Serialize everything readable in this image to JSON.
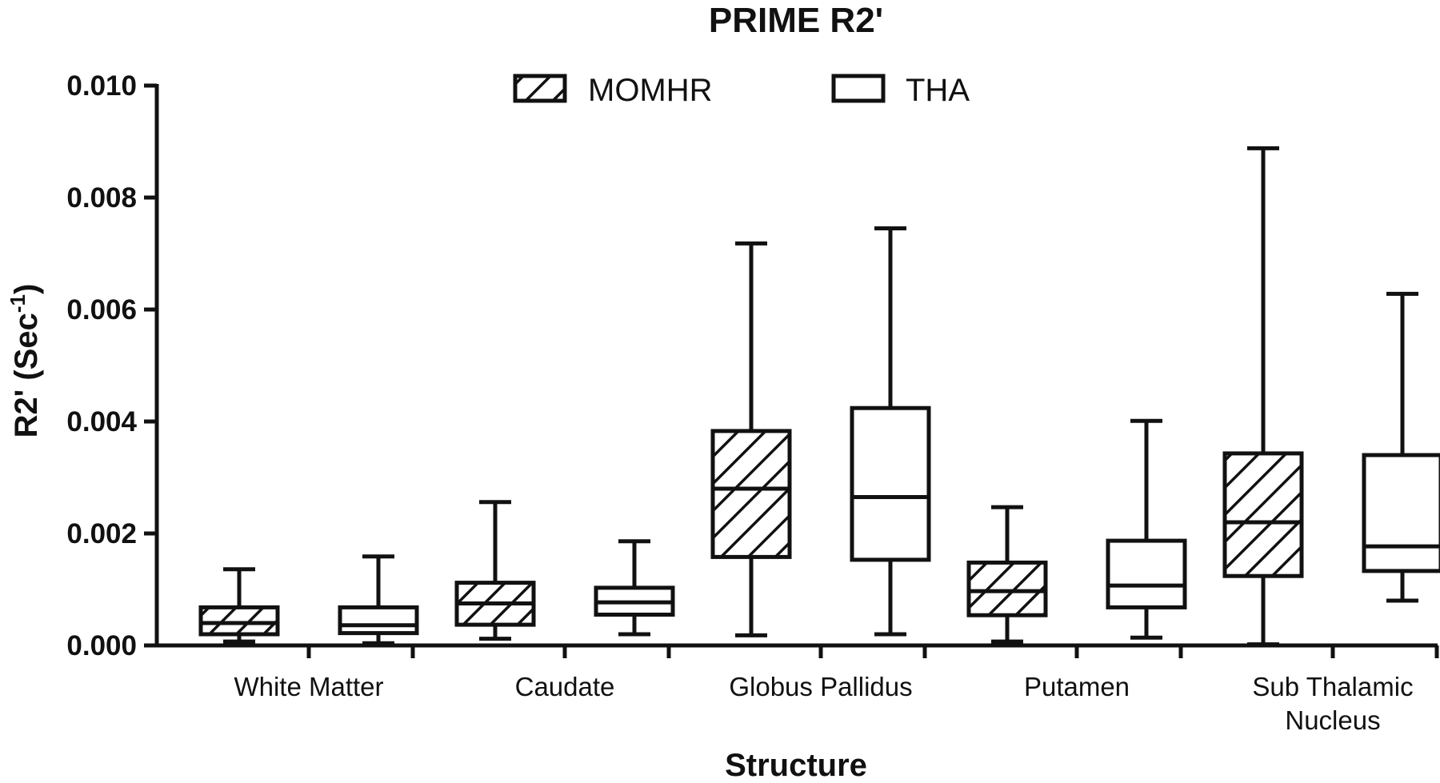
{
  "chart_data": {
    "type": "box",
    "title": "PRIME R2'",
    "xlabel": "Structure",
    "ylabel": "R2' (Sec",
    "ylabel_superscript": "-1",
    "ylabel_close": ")",
    "ylim": [
      0,
      0.01
    ],
    "yticks": [
      "0.000",
      "0.002",
      "0.004",
      "0.006",
      "0.008",
      "0.010"
    ],
    "ytick_values": [
      0,
      0.002,
      0.004,
      0.006,
      0.008,
      0.01
    ],
    "grid": false,
    "legend_position": "top-center",
    "categories": [
      [
        "White Matter"
      ],
      [
        "Caudate"
      ],
      [
        "Globus Pallidus"
      ],
      [
        "Putamen"
      ],
      [
        "Sub Thalamic",
        "Nucleus"
      ]
    ],
    "series": [
      {
        "name": "MOMHR",
        "fill": "hatched",
        "boxes": [
          {
            "min": 7e-05,
            "q1": 0.0002,
            "median": 0.0004,
            "q3": 0.00068,
            "max": 0.00136
          },
          {
            "min": 0.00012,
            "q1": 0.00037,
            "median": 0.00075,
            "q3": 0.00112,
            "max": 0.00256
          },
          {
            "min": 0.00018,
            "q1": 0.00158,
            "median": 0.0028,
            "q3": 0.00383,
            "max": 0.00718
          },
          {
            "min": 7e-05,
            "q1": 0.00054,
            "median": 0.00097,
            "q3": 0.00148,
            "max": 0.00247
          },
          {
            "min": 2e-05,
            "q1": 0.00124,
            "median": 0.0022,
            "q3": 0.00343,
            "max": 0.00888
          }
        ]
      },
      {
        "name": "THA",
        "fill": "open",
        "boxes": [
          {
            "min": 4e-05,
            "q1": 0.00022,
            "median": 0.00036,
            "q3": 0.00068,
            "max": 0.00159
          },
          {
            "min": 0.0002,
            "q1": 0.00055,
            "median": 0.00077,
            "q3": 0.00103,
            "max": 0.00186
          },
          {
            "min": 0.0002,
            "q1": 0.00153,
            "median": 0.00265,
            "q3": 0.00424,
            "max": 0.00745
          },
          {
            "min": 0.00014,
            "q1": 0.00068,
            "median": 0.00107,
            "q3": 0.00187,
            "max": 0.00401
          },
          {
            "min": 0.0008,
            "q1": 0.00133,
            "median": 0.00177,
            "q3": 0.0034,
            "max": 0.00628
          }
        ]
      }
    ]
  }
}
